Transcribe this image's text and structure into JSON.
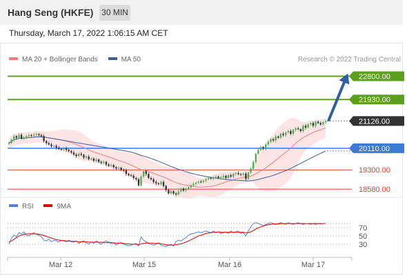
{
  "header": {
    "title": "Hang Seng (HKFE)",
    "timeframe": "30 MIN",
    "datetime": "Thursday, March 17, 2022 1:06:15 AM CET"
  },
  "legend": {
    "ma20_label": "MA 20 + Bollinger Bands",
    "ma20_color": "#f08080",
    "ma50_label": "MA 50",
    "ma50_color": "#3a5f9a",
    "source": "Research © 2022 Trading Central"
  },
  "rsi_legend": {
    "rsi_label": "RSI",
    "rsi_color": "#5b7fd4",
    "ma_label": "9MA",
    "ma_color": "#e00000"
  },
  "chart_data": [
    {
      "type": "candlestick",
      "ylim": [
        18300,
        23200
      ],
      "x_ticks": [
        "Mar 12",
        "Mar 15",
        "Mar 16",
        "Mar 17"
      ],
      "current_price": "21126.00",
      "levels": [
        {
          "label": "22800.00",
          "value": 22800,
          "kind": "resistance",
          "color": "#5aa01e"
        },
        {
          "label": "21930.00",
          "value": 21930,
          "kind": "resistance",
          "color": "#5aa01e"
        },
        {
          "label": "21126.00",
          "value": 21126,
          "kind": "last",
          "color": "#333333"
        },
        {
          "label": "20110.00",
          "value": 20110,
          "kind": "pivot",
          "color": "#3a7bd5"
        },
        {
          "label": "19300.00",
          "value": 19300,
          "kind": "support",
          "color": "#e63b2e"
        },
        {
          "label": "18580.00",
          "value": 18580,
          "kind": "support",
          "color": "#e63b2e"
        }
      ],
      "close": [
        20310,
        20420,
        20560,
        20500,
        20610,
        20480,
        20520,
        20560,
        20600,
        20580,
        20620,
        20640,
        20600,
        20560,
        20380,
        20300,
        20250,
        20180,
        20200,
        20130,
        20080,
        20060,
        20110,
        20050,
        20000,
        19950,
        19880,
        19820,
        19900,
        19860,
        19760,
        19800,
        19700,
        19720,
        19640,
        19690,
        19600,
        19560,
        19600,
        19500,
        19450,
        19480,
        19400,
        19350,
        19380,
        19300,
        19280,
        19150,
        19100,
        19080,
        19000,
        18950,
        18720,
        19050,
        19250,
        19150,
        19000,
        18950,
        18850,
        18800,
        18770,
        18850,
        18700,
        18550,
        18420,
        18500,
        18420,
        18380,
        18500,
        18600,
        18530,
        18580,
        18650,
        18720,
        18780,
        18820,
        18860,
        18850,
        18900,
        18950,
        19000,
        18980,
        19020,
        19050,
        19000,
        19030,
        19080,
        19000,
        19100,
        19050,
        19150,
        19180,
        19140,
        19120,
        19160,
        18960,
        19200,
        19350,
        19600,
        19900,
        20050,
        20150,
        20100,
        20250,
        20350,
        20450,
        20400,
        20550,
        20500,
        20650,
        20600,
        20700,
        20750,
        20650,
        20800,
        20850,
        20820,
        20750,
        20950,
        20880,
        21000,
        21050,
        20950,
        21100,
        21050,
        21000,
        21080,
        21126
      ]
    },
    {
      "type": "line",
      "name": "RSI",
      "ylim": [
        0,
        100
      ],
      "y_ticks": [
        30,
        50,
        70
      ],
      "rsi": [
        30,
        45,
        52,
        48,
        58,
        55,
        60,
        52,
        50,
        55,
        58,
        54,
        52,
        48,
        40,
        38,
        42,
        36,
        40,
        38,
        35,
        40,
        38,
        36,
        40,
        36,
        35,
        38,
        32,
        36,
        38,
        34,
        30,
        36,
        32,
        38,
        34,
        30,
        36,
        38,
        35,
        32,
        34,
        28,
        32,
        34,
        30,
        28,
        26,
        28,
        30,
        32,
        26,
        48,
        40,
        36,
        32,
        30,
        28,
        30,
        34,
        28,
        26,
        24,
        28,
        30,
        26,
        36,
        40,
        38,
        42,
        46,
        52,
        55,
        56,
        58,
        60,
        58,
        60,
        62,
        60,
        58,
        62,
        58,
        60,
        56,
        58,
        60,
        56,
        62,
        58,
        60,
        62,
        56,
        58,
        50,
        62,
        72,
        80,
        82,
        80,
        78,
        74,
        78,
        80,
        82,
        80,
        78,
        80,
        82,
        80,
        78,
        82,
        80,
        78,
        80,
        82,
        80,
        78,
        80,
        80,
        78,
        80,
        78,
        80,
        79,
        80,
        80
      ],
      "ma9": [
        35,
        38,
        42,
        46,
        50,
        52,
        54,
        55,
        55,
        55,
        55,
        55,
        54,
        53,
        51,
        49,
        47,
        45,
        43,
        41,
        40,
        39,
        39,
        38,
        38,
        37,
        37,
        37,
        36,
        36,
        36,
        36,
        35,
        35,
        35,
        35,
        35,
        35,
        34,
        34,
        34,
        34,
        33,
        33,
        33,
        33,
        32,
        31,
        31,
        30,
        30,
        30,
        29,
        31,
        32,
        33,
        33,
        33,
        32,
        32,
        32,
        31,
        30,
        29,
        28,
        28,
        28,
        29,
        30,
        31,
        33,
        35,
        38,
        41,
        44,
        47,
        50,
        52,
        54,
        56,
        57,
        58,
        59,
        59,
        60,
        59,
        59,
        59,
        59,
        59,
        59,
        59,
        59,
        59,
        59,
        58,
        58,
        60,
        63,
        67,
        70,
        72,
        74,
        76,
        77,
        78,
        79,
        79,
        79,
        80,
        80,
        80,
        80,
        80,
        80,
        80,
        80,
        80,
        80,
        80,
        80,
        80,
        80,
        80,
        80,
        80,
        80,
        80
      ]
    }
  ]
}
